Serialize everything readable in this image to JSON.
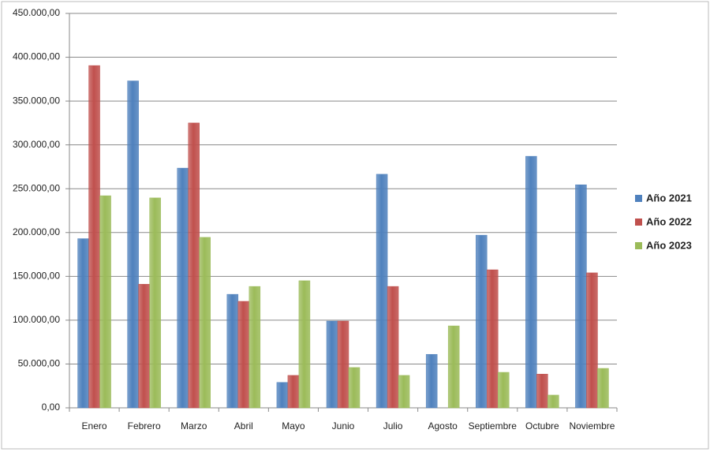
{
  "chart_data": {
    "type": "bar",
    "categories": [
      "Enero",
      "Febrero",
      "Marzo",
      "Abril",
      "Mayo",
      "Junio",
      "Julio",
      "Agosto",
      "Septiembre",
      "Octubre",
      "Noviembre"
    ],
    "series": [
      {
        "name": "Año 2021",
        "color": "#4f81bd",
        "values": [
          193000,
          373000,
          273500,
          129500,
          29000,
          99000,
          266500,
          61000,
          197000,
          287000,
          254500
        ]
      },
      {
        "name": "Año 2022",
        "color": "#c0504d",
        "values": [
          390500,
          141000,
          325000,
          121500,
          37000,
          99000,
          138500,
          null,
          157500,
          38500,
          154000
        ]
      },
      {
        "name": "Año 2023",
        "color": "#9bbb59",
        "values": [
          242000,
          239500,
          194500,
          138500,
          145000,
          46000,
          37000,
          93500,
          40500,
          14500,
          45000
        ]
      }
    ],
    "ylim": [
      0,
      450000
    ],
    "yticks": [
      {
        "value": 0,
        "label": "0,00"
      },
      {
        "value": 50000,
        "label": "50.000,00"
      },
      {
        "value": 100000,
        "label": "100.000,00"
      },
      {
        "value": 150000,
        "label": "150.000,00"
      },
      {
        "value": 200000,
        "label": "200.000,00"
      },
      {
        "value": 250000,
        "label": "250.000,00"
      },
      {
        "value": 300000,
        "label": "300.000,00"
      },
      {
        "value": 350000,
        "label": "350.000,00"
      },
      {
        "value": 400000,
        "label": "400.000,00"
      },
      {
        "value": 450000,
        "label": "450.000,00"
      }
    ],
    "grid": true,
    "legend": "right"
  }
}
